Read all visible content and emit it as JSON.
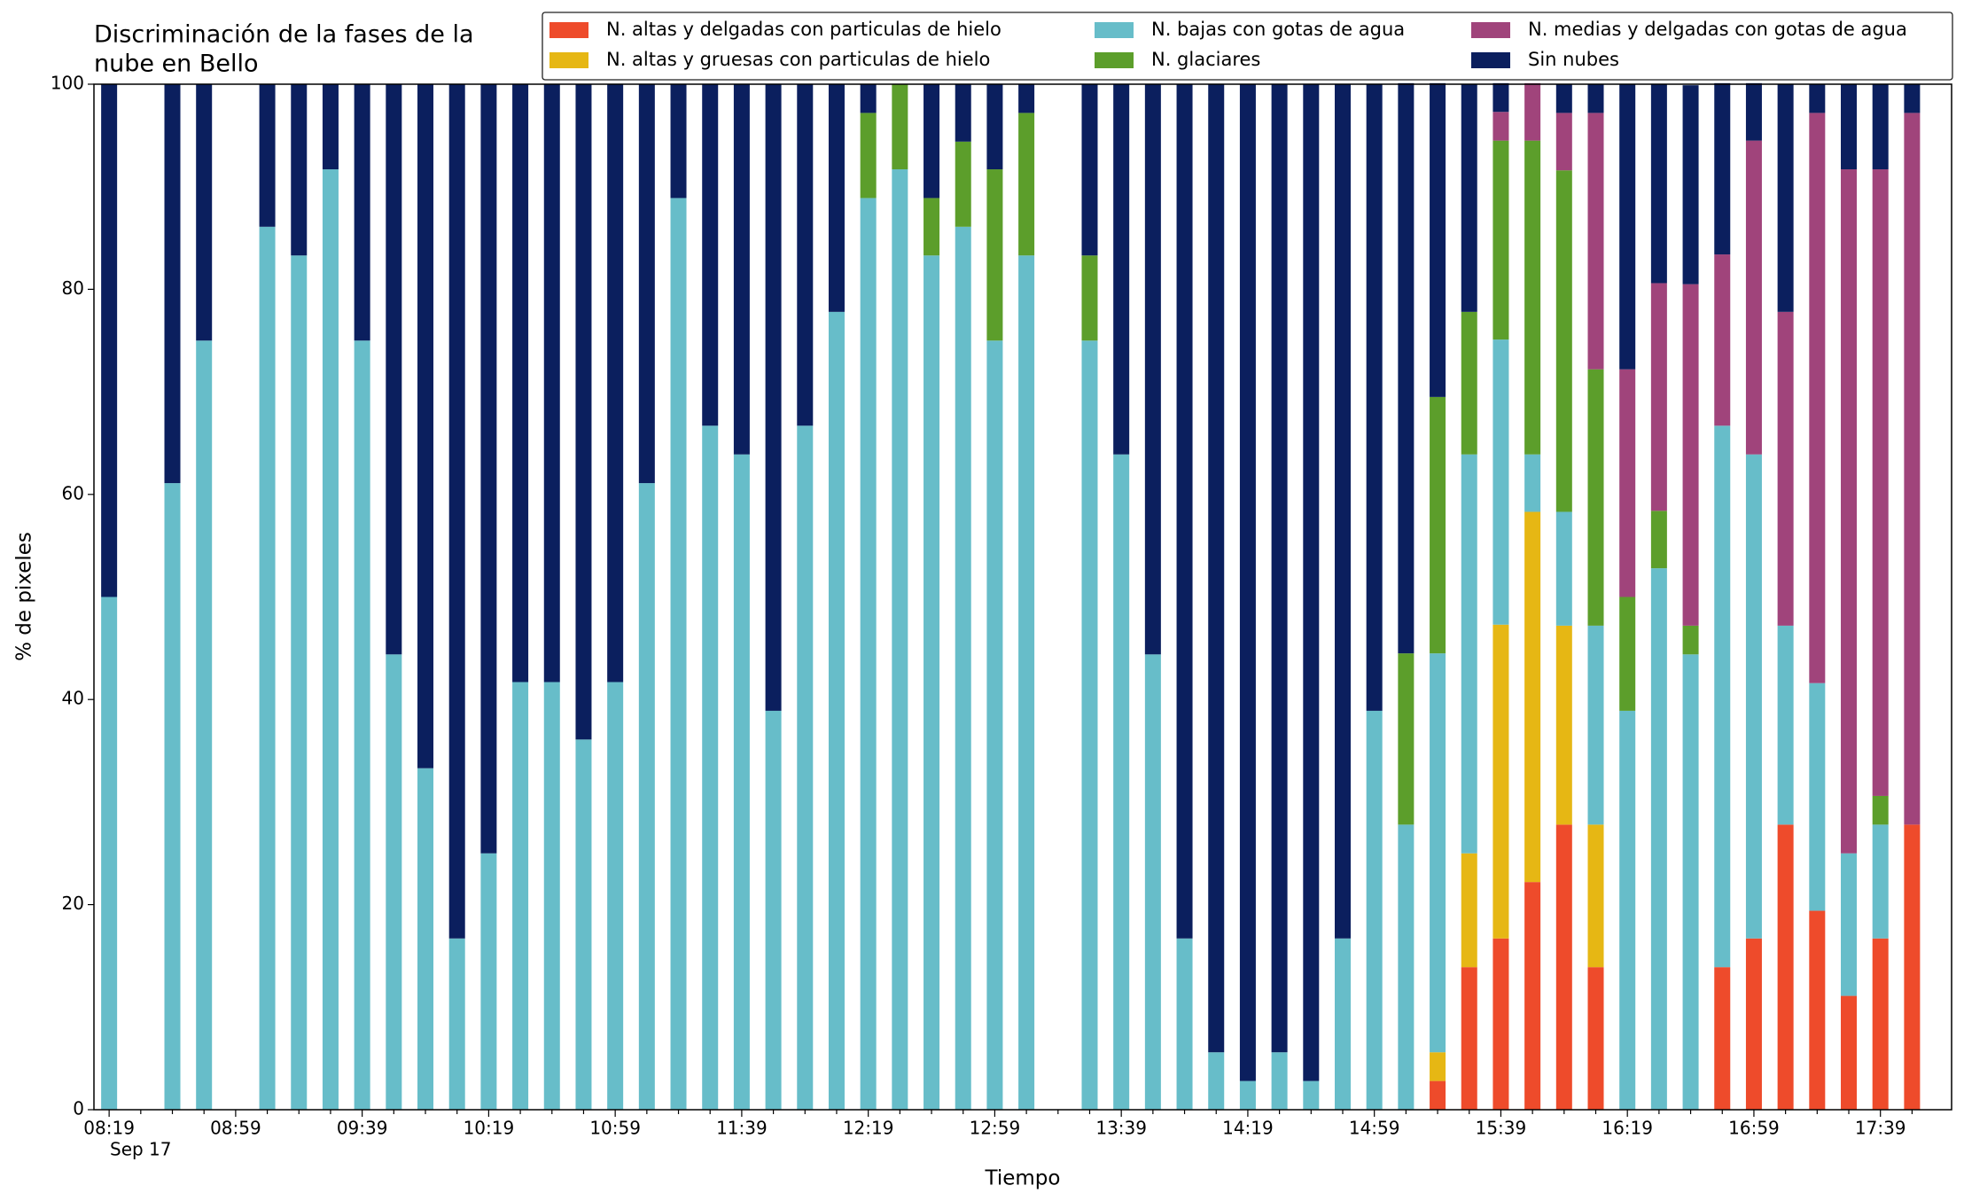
{
  "chart_data": {
    "type": "stacked_bar",
    "title": [
      "Discriminación de la fases de la",
      "nube en Bello"
    ],
    "xlabel": "Tiempo",
    "ylabel": "% de pixeles",
    "date_label": "Sep 17",
    "categories": [
      "08:19",
      null,
      null,
      null,
      "08:59",
      null,
      null,
      null,
      "09:39",
      null,
      null,
      null,
      "10:19",
      null,
      null,
      null,
      "10:59",
      null,
      null,
      null,
      "11:39",
      null,
      null,
      null,
      "12:19",
      null,
      null,
      null,
      "12:59",
      null,
      null,
      null,
      "13:39",
      null,
      null,
      null,
      "14:19",
      null,
      null,
      null,
      "14:59",
      null,
      null,
      null,
      "15:39",
      null,
      null,
      null,
      "16:19",
      null,
      null,
      null,
      "16:59",
      null,
      null,
      null,
      "17:39",
      null
    ],
    "ylim": [
      0,
      100
    ],
    "yticks": [
      0,
      20,
      40,
      60,
      80,
      100
    ],
    "legend": "top-right",
    "series": [
      {
        "name": "N. altas y delgadas con particulas de hielo",
        "color": "#ee4b2b",
        "values": [
          0,
          null,
          0,
          0,
          null,
          0,
          0,
          0,
          0,
          0,
          0,
          0,
          0,
          0,
          0,
          0,
          0,
          0,
          0,
          0,
          0,
          0,
          0,
          0,
          0,
          0,
          0,
          0,
          0,
          0,
          null,
          0,
          0,
          0,
          0,
          0,
          0,
          0,
          0,
          0,
          0,
          0,
          2.8,
          13.9,
          16.7,
          22.2,
          27.8,
          13.9,
          0,
          0,
          0,
          13.9,
          16.7,
          27.8,
          19.4,
          11.1,
          16.7,
          27.8
        ]
      },
      {
        "name": "N. altas y gruesas con particulas de hielo",
        "color": "#e6b714",
        "values": [
          0,
          null,
          0,
          0,
          null,
          0,
          0,
          0,
          0,
          0,
          0,
          0,
          0,
          0,
          0,
          0,
          0,
          0,
          0,
          0,
          0,
          0,
          0,
          0,
          0,
          0,
          0,
          0,
          0,
          0,
          null,
          0,
          0,
          0,
          0,
          0,
          0,
          0,
          0,
          0,
          0,
          0,
          2.8,
          11.1,
          30.6,
          36.1,
          19.4,
          13.9,
          0,
          0,
          0,
          0,
          0,
          0,
          0,
          0,
          0,
          0
        ]
      },
      {
        "name": "N. bajas con gotas de agua",
        "color": "#67bdc9",
        "values": [
          50,
          null,
          61.1,
          75,
          null,
          86.1,
          83.3,
          91.7,
          75,
          44.4,
          33.3,
          16.7,
          25,
          41.7,
          41.7,
          36.1,
          41.7,
          61.1,
          88.9,
          66.7,
          63.9,
          38.9,
          66.7,
          77.8,
          88.9,
          91.7,
          83.3,
          86.1,
          75,
          83.3,
          null,
          75,
          63.9,
          44.4,
          16.7,
          5.6,
          2.8,
          5.6,
          2.8,
          16.7,
          38.9,
          27.8,
          38.9,
          38.9,
          27.8,
          5.6,
          11.1,
          19.4,
          38.9,
          52.8,
          44.4,
          52.8,
          47.2,
          19.4,
          22.2,
          13.9,
          11.1,
          0
        ]
      },
      {
        "name": "N. glaciares",
        "color": "#5c9e2b",
        "values": [
          0,
          null,
          0,
          0,
          null,
          0,
          0,
          0,
          0,
          0,
          0,
          0,
          0,
          0,
          0,
          0,
          0,
          0,
          0,
          0,
          0,
          0,
          0,
          0,
          8.3,
          8.3,
          5.6,
          8.3,
          16.7,
          13.9,
          null,
          8.3,
          0,
          0,
          0,
          0,
          0,
          0,
          0,
          0,
          0,
          16.7,
          25,
          13.9,
          19.4,
          30.6,
          33.3,
          25,
          11.1,
          5.6,
          2.8,
          0,
          0,
          0,
          0,
          0,
          2.8,
          0
        ]
      },
      {
        "name": "N. medias y delgadas con gotas de agua",
        "color": "#a0447b",
        "values": [
          0,
          null,
          0,
          0,
          null,
          0,
          0,
          0,
          0,
          0,
          0,
          0,
          0,
          0,
          0,
          0,
          0,
          0,
          0,
          0,
          0,
          0,
          0,
          0,
          0,
          0,
          0,
          0,
          0,
          0,
          null,
          0,
          0,
          0,
          0,
          0,
          0,
          0,
          0,
          0,
          0,
          0,
          0,
          0,
          2.8,
          5.6,
          5.6,
          25,
          22.2,
          22.2,
          33.3,
          16.7,
          30.6,
          30.6,
          55.6,
          66.7,
          61.1,
          69.4
        ]
      },
      {
        "name": "Sin nubes",
        "color": "#0b1f5e",
        "values": [
          50,
          null,
          38.9,
          25,
          null,
          13.9,
          16.7,
          8.3,
          25,
          55.6,
          66.7,
          83.3,
          75,
          58.3,
          58.3,
          63.9,
          58.3,
          38.9,
          11.1,
          33.3,
          36.1,
          61.1,
          33.3,
          22.2,
          2.8,
          0,
          11.1,
          5.6,
          8.3,
          2.8,
          null,
          16.7,
          36.1,
          55.6,
          83.3,
          94.4,
          97.2,
          94.4,
          97.2,
          83.3,
          61.1,
          55.6,
          30.6,
          22.2,
          2.8,
          0,
          2.8,
          2.8,
          27.8,
          19.4,
          19.4,
          16.7,
          5.6,
          22.2,
          2.8,
          8.3,
          8.3,
          2.8
        ]
      }
    ]
  }
}
